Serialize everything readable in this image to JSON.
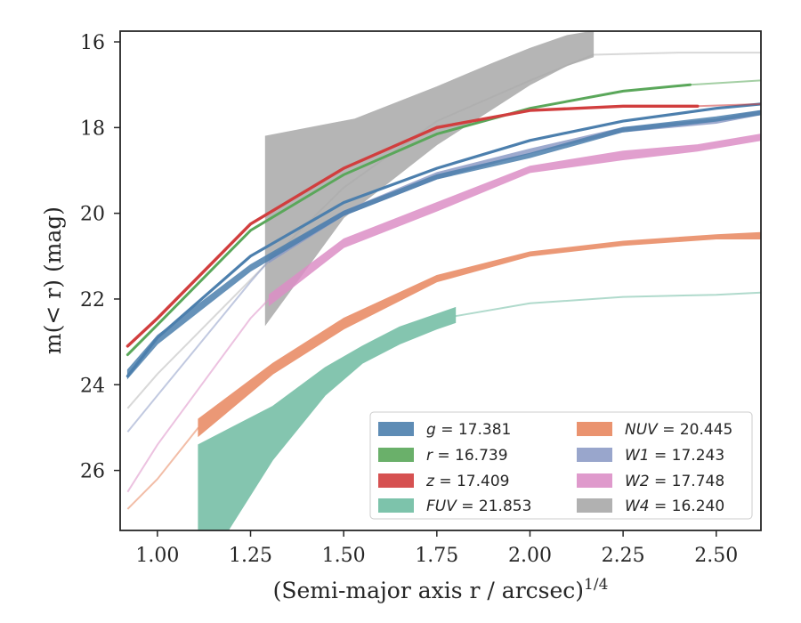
{
  "chart_data": {
    "type": "line",
    "xlabel": "(Semi-major axis r / arcsec)",
    "xlabel_exponent": "1/4",
    "ylabel": "m(< r) (mag)",
    "xlim": [
      0.9,
      2.62
    ],
    "ylim": [
      27.4,
      15.75
    ],
    "y_inverted": true,
    "x_ticks": [
      1.0,
      1.25,
      1.5,
      1.75,
      2.0,
      2.25,
      2.5
    ],
    "x_tick_labels": [
      "1.00",
      "1.25",
      "1.50",
      "1.75",
      "2.00",
      "2.25",
      "2.50"
    ],
    "y_ticks": [
      16,
      18,
      20,
      22,
      24,
      26
    ],
    "y_tick_labels": [
      "16",
      "18",
      "20",
      "22",
      "24",
      "26"
    ],
    "grid": false,
    "legend_position": "lower-right",
    "series": [
      {
        "band": "g",
        "value": "17.381",
        "color": "#4c7fad",
        "band_x": [
          0.92,
          2.62
        ],
        "band_upper": [
          [
            0.92,
            23.85
          ],
          [
            1.0,
            23.05
          ],
          [
            1.25,
            21.35
          ],
          [
            1.5,
            20.05
          ],
          [
            1.75,
            19.2
          ],
          [
            2.0,
            18.7
          ],
          [
            2.25,
            18.1
          ],
          [
            2.5,
            17.85
          ],
          [
            2.62,
            17.7
          ]
        ],
        "band_lower": [
          [
            0.92,
            23.65
          ],
          [
            1.0,
            22.85
          ],
          [
            1.25,
            21.2
          ],
          [
            1.5,
            19.95
          ],
          [
            1.75,
            19.1
          ],
          [
            2.0,
            18.6
          ],
          [
            2.25,
            18.0
          ],
          [
            2.5,
            17.75
          ],
          [
            2.62,
            17.6
          ]
        ],
        "line": [
          [
            0.92,
            23.8
          ],
          [
            1.0,
            22.9
          ],
          [
            1.25,
            21.0
          ],
          [
            1.5,
            19.75
          ],
          [
            1.75,
            18.95
          ],
          [
            2.0,
            18.3
          ],
          [
            2.25,
            17.85
          ],
          [
            2.5,
            17.55
          ],
          [
            2.62,
            17.45
          ]
        ]
      },
      {
        "band": "r",
        "value": "16.739",
        "color": "#5aa75a",
        "line": [
          [
            0.92,
            23.3
          ],
          [
            1.0,
            22.6
          ],
          [
            1.25,
            20.4
          ],
          [
            1.5,
            19.1
          ],
          [
            1.75,
            18.15
          ],
          [
            2.0,
            17.55
          ],
          [
            2.25,
            17.15
          ],
          [
            2.43,
            17.0
          ],
          [
            2.62,
            16.9
          ]
        ],
        "solid_until": 2.43
      },
      {
        "band": "z",
        "value": "17.409",
        "color": "#d13e3e",
        "line": [
          [
            0.92,
            23.1
          ],
          [
            1.0,
            22.45
          ],
          [
            1.25,
            20.25
          ],
          [
            1.5,
            18.95
          ],
          [
            1.75,
            18.0
          ],
          [
            2.0,
            17.6
          ],
          [
            2.25,
            17.5
          ],
          [
            2.45,
            17.5
          ],
          [
            2.62,
            17.45
          ]
        ],
        "solid_until": 2.46
      },
      {
        "band": "FUV",
        "value": "21.853",
        "color": "#6fbca2",
        "band_upper": [
          [
            1.11,
            25.4
          ],
          [
            1.31,
            24.5
          ],
          [
            1.45,
            23.6
          ],
          [
            1.55,
            23.1
          ],
          [
            1.65,
            22.65
          ],
          [
            1.75,
            22.35
          ],
          [
            1.8,
            22.2
          ]
        ],
        "band_lower": [
          [
            1.11,
            27.4
          ],
          [
            1.19,
            27.4
          ],
          [
            1.31,
            25.75
          ],
          [
            1.45,
            24.25
          ],
          [
            1.55,
            23.5
          ],
          [
            1.65,
            23.05
          ],
          [
            1.75,
            22.7
          ],
          [
            1.8,
            22.55
          ]
        ],
        "line": [
          [
            1.8,
            22.4
          ],
          [
            2.0,
            22.1
          ],
          [
            2.25,
            21.95
          ],
          [
            2.5,
            21.9
          ],
          [
            2.62,
            21.85
          ]
        ]
      },
      {
        "band": "NUV",
        "value": "20.445",
        "color": "#e8875f",
        "band_upper": [
          [
            1.11,
            24.8
          ],
          [
            1.31,
            23.5
          ],
          [
            1.5,
            22.45
          ],
          [
            1.75,
            21.45
          ],
          [
            2.0,
            20.9
          ],
          [
            2.25,
            20.65
          ],
          [
            2.5,
            20.5
          ],
          [
            2.62,
            20.45
          ]
        ],
        "band_lower": [
          [
            1.11,
            25.2
          ],
          [
            1.31,
            23.75
          ],
          [
            1.5,
            22.7
          ],
          [
            1.75,
            21.6
          ],
          [
            2.0,
            21.0
          ],
          [
            2.25,
            20.75
          ],
          [
            2.5,
            20.6
          ],
          [
            2.62,
            20.6
          ]
        ],
        "line": [
          [
            0.92,
            26.9
          ],
          [
            1.0,
            26.2
          ],
          [
            1.11,
            25.0
          ]
        ]
      },
      {
        "band": "W1",
        "value": "17.243",
        "color": "#8e9cc6",
        "band_upper": [
          [
            1.3,
            21.0
          ],
          [
            1.5,
            19.95
          ],
          [
            1.75,
            19.05
          ],
          [
            2.0,
            18.5
          ],
          [
            2.25,
            18.0
          ],
          [
            2.5,
            17.8
          ],
          [
            2.62,
            17.6
          ]
        ],
        "band_lower": [
          [
            1.3,
            21.15
          ],
          [
            1.5,
            20.05
          ],
          [
            1.75,
            19.2
          ],
          [
            2.0,
            18.6
          ],
          [
            2.25,
            18.1
          ],
          [
            2.5,
            17.9
          ],
          [
            2.62,
            17.7
          ]
        ],
        "line": [
          [
            0.92,
            25.1
          ],
          [
            1.0,
            24.25
          ],
          [
            1.25,
            21.6
          ],
          [
            1.3,
            21.1
          ]
        ]
      },
      {
        "band": "W2",
        "value": "17.748",
        "color": "#dc8fc6",
        "band_upper": [
          [
            1.3,
            21.9
          ],
          [
            1.5,
            20.6
          ],
          [
            1.75,
            19.75
          ],
          [
            2.0,
            18.9
          ],
          [
            2.25,
            18.55
          ],
          [
            2.45,
            18.4
          ],
          [
            2.62,
            18.15
          ]
        ],
        "band_lower": [
          [
            1.3,
            22.15
          ],
          [
            1.5,
            20.8
          ],
          [
            1.75,
            19.95
          ],
          [
            2.0,
            19.05
          ],
          [
            2.25,
            18.75
          ],
          [
            2.45,
            18.55
          ],
          [
            2.62,
            18.3
          ]
        ],
        "line": [
          [
            0.92,
            26.5
          ],
          [
            1.0,
            25.4
          ],
          [
            1.25,
            22.45
          ],
          [
            1.3,
            22.0
          ]
        ]
      },
      {
        "band": "W4",
        "value": "16.240",
        "color": "#a9a9a9",
        "band_upper": [
          [
            1.29,
            18.2
          ],
          [
            1.53,
            17.8
          ],
          [
            1.75,
            17.05
          ],
          [
            1.9,
            16.5
          ],
          [
            2.0,
            16.15
          ],
          [
            2.1,
            15.85
          ],
          [
            2.17,
            15.75
          ]
        ],
        "band_lower": [
          [
            1.29,
            22.6
          ],
          [
            1.5,
            20.1
          ],
          [
            1.75,
            18.4
          ],
          [
            2.0,
            17.0
          ],
          [
            2.1,
            16.55
          ],
          [
            2.17,
            16.35
          ]
        ],
        "line": [
          [
            0.92,
            24.55
          ],
          [
            1.0,
            23.75
          ],
          [
            1.29,
            21.2
          ],
          [
            1.5,
            19.4
          ],
          [
            1.75,
            17.85
          ],
          [
            2.0,
            16.9
          ],
          [
            2.17,
            16.3
          ],
          [
            2.4,
            16.25
          ],
          [
            2.62,
            16.25
          ]
        ]
      }
    ],
    "legend": [
      {
        "symbol": "g",
        "text": " = 17.381",
        "color": "#4c7fad"
      },
      {
        "symbol": "r",
        "text": " = 16.739",
        "color": "#5aa75a"
      },
      {
        "symbol": "z",
        "text": " = 17.409",
        "color": "#d13e3e"
      },
      {
        "symbol": "FUV",
        "text": " = 21.853",
        "color": "#6fbca2"
      },
      {
        "symbol": "NUV",
        "text": " = 20.445",
        "color": "#e8875f"
      },
      {
        "symbol": "W1",
        "text": " = 17.243",
        "color": "#8e9cc6"
      },
      {
        "symbol": "W2",
        "text": " = 17.748",
        "color": "#dc8fc6"
      },
      {
        "symbol": "W4",
        "text": " = 16.240",
        "color": "#a9a9a9"
      }
    ]
  }
}
